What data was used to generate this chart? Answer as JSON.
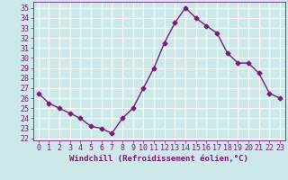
{
  "x": [
    0,
    1,
    2,
    3,
    4,
    5,
    6,
    7,
    8,
    9,
    10,
    11,
    12,
    13,
    14,
    15,
    16,
    17,
    18,
    19,
    20,
    21,
    22,
    23
  ],
  "y": [
    26.5,
    25.5,
    25.0,
    24.5,
    24.0,
    23.2,
    23.0,
    22.5,
    24.0,
    25.0,
    27.0,
    29.0,
    31.5,
    33.5,
    35.0,
    34.0,
    33.2,
    32.5,
    30.5,
    29.5,
    29.5,
    28.5,
    26.5,
    26.0
  ],
  "line_color": "#7B1B7B",
  "marker": "D",
  "markersize": 2.5,
  "linewidth": 1.0,
  "bg_color": "#cce8e8",
  "grid_color": "#b0d8d8",
  "xlabel": "Windchill (Refroidissement éolien,°C)",
  "xlabel_color": "#7B1B7B",
  "xlabel_fontsize": 6.5,
  "tick_color": "#7B1B7B",
  "tick_fontsize": 6.0,
  "xlim": [
    -0.5,
    23.5
  ],
  "ylim": [
    21.8,
    35.6
  ],
  "yticks": [
    22,
    23,
    24,
    25,
    26,
    27,
    28,
    29,
    30,
    31,
    32,
    33,
    34,
    35
  ],
  "xticks": [
    0,
    1,
    2,
    3,
    4,
    5,
    6,
    7,
    8,
    9,
    10,
    11,
    12,
    13,
    14,
    15,
    16,
    17,
    18,
    19,
    20,
    21,
    22,
    23
  ]
}
